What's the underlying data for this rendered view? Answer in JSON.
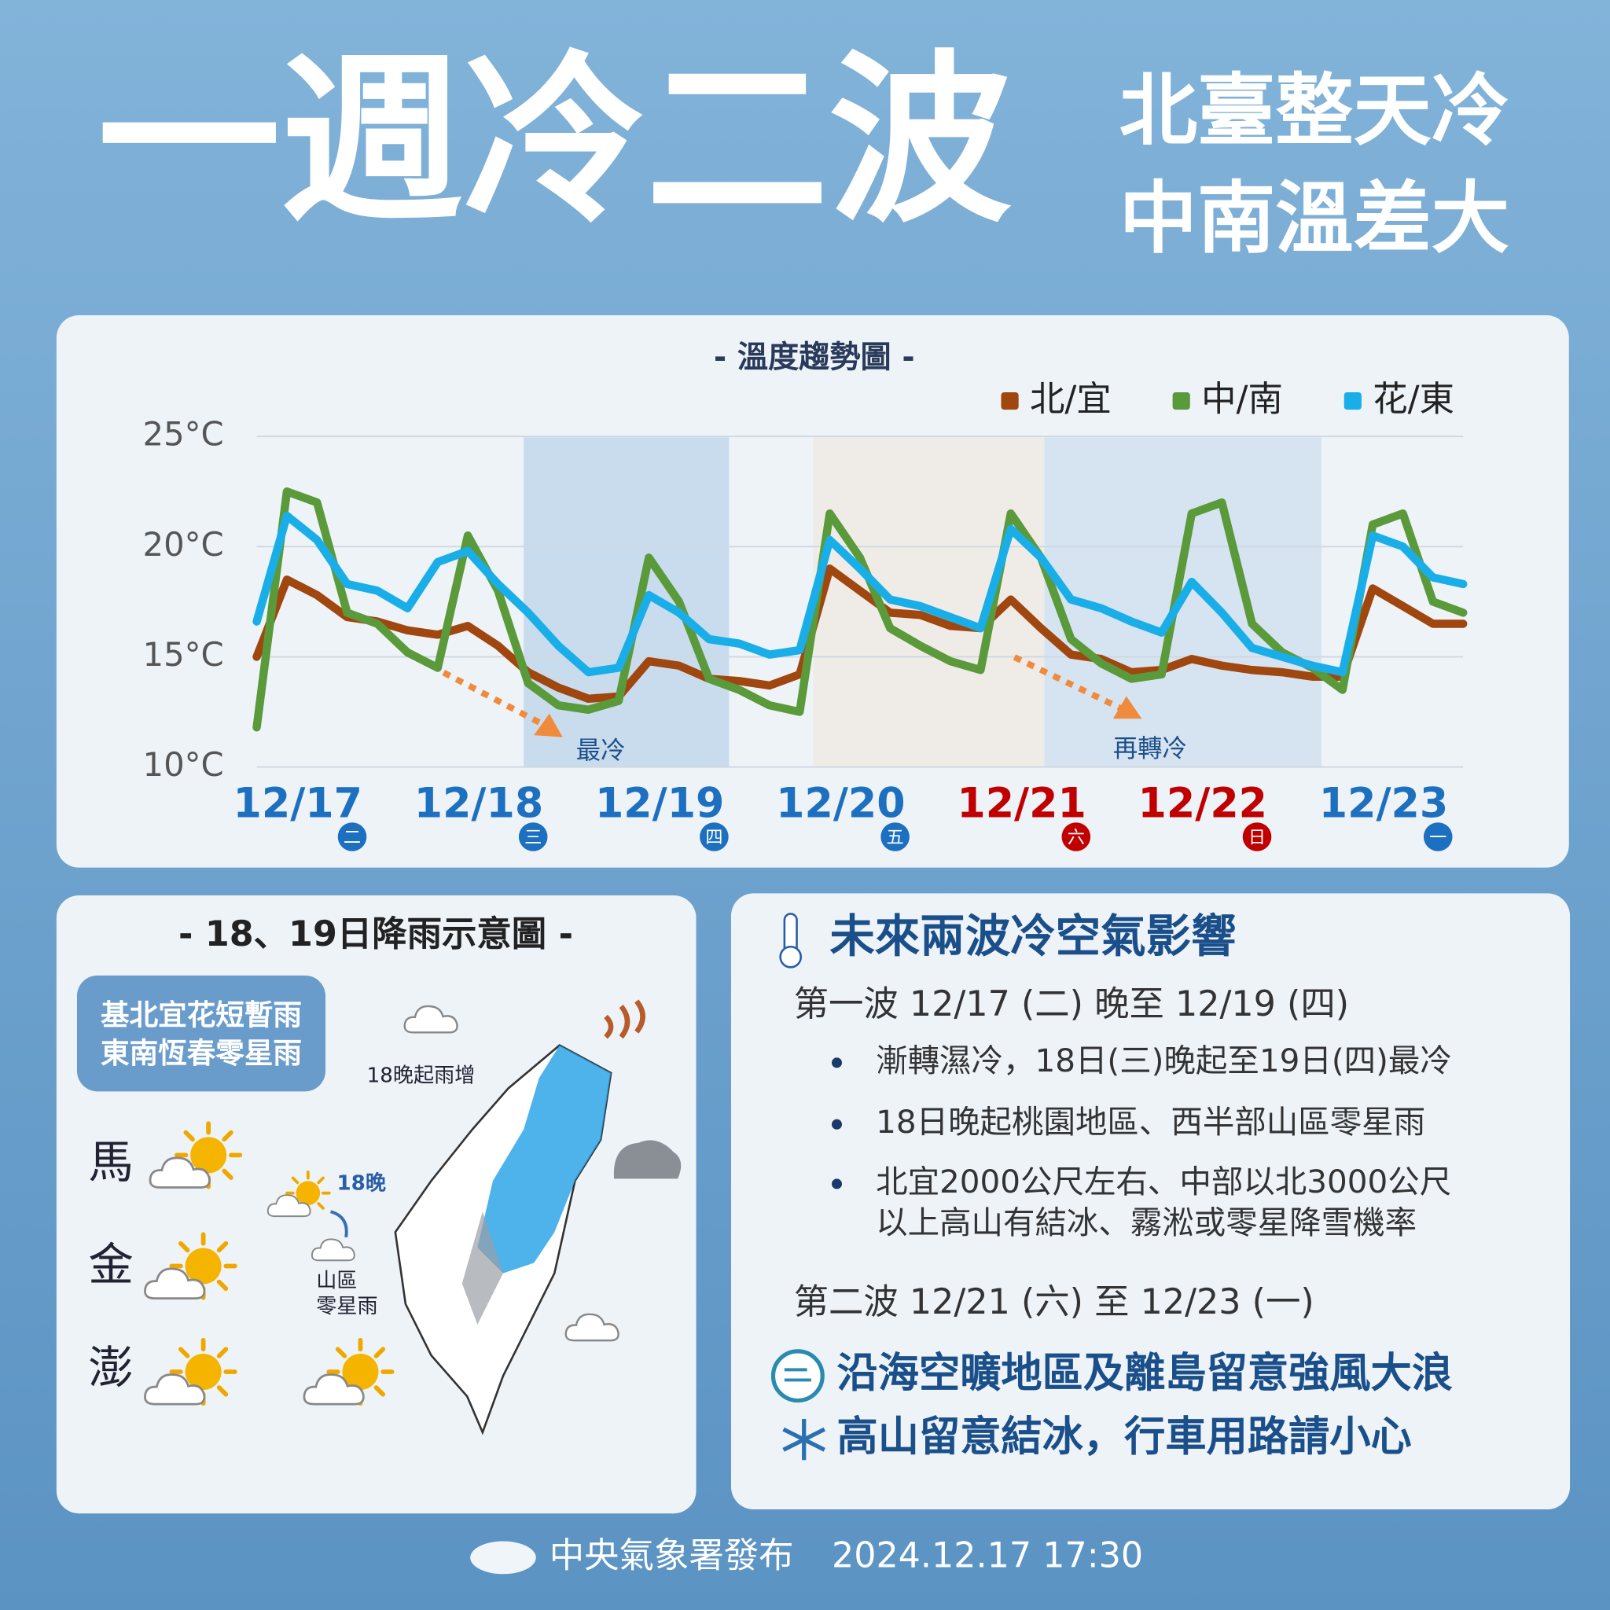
{
  "header": {
    "title": "一週冷二波",
    "subtitle_lines": [
      "北臺整天冷",
      "中南溫差大"
    ]
  },
  "chart_data": {
    "type": "line",
    "title": "- 溫度趨勢圖 -",
    "categories": [
      "12/17",
      "12/18",
      "12/19",
      "12/20",
      "12/21",
      "12/22",
      "12/23"
    ],
    "weekdays": [
      "二",
      "三",
      "四",
      "五",
      "六",
      "日",
      "一"
    ],
    "category_colors": [
      "#1d6fbf",
      "#1d6fbf",
      "#1d6fbf",
      "#1d6fbf",
      "#c00000",
      "#c00000",
      "#1d6fbf"
    ],
    "series": [
      {
        "name": "北/宜",
        "color": "#a0460f",
        "values": [
          [
            15,
            18.5,
            17.8,
            16.8,
            16.6,
            16.2
          ],
          [
            16,
            16.4,
            15.5,
            14.3,
            13.6,
            13.1
          ],
          [
            13.2,
            14.8,
            14.6,
            14,
            13.9,
            13.7
          ],
          [
            14.2,
            19,
            18,
            17,
            16.9,
            16.4
          ],
          [
            16.3,
            17.6,
            16.3,
            15.1,
            14.9,
            14.3
          ],
          [
            14.4,
            14.9,
            14.6,
            14.4,
            14.3,
            14.1
          ],
          [
            14.1,
            18.1,
            17.3,
            16.5,
            16.5
          ]
        ]
      },
      {
        "name": "中/南",
        "color": "#5a9a3a",
        "values": [
          [
            11.8,
            22.5,
            22,
            17,
            16.5,
            15.2
          ],
          [
            14.5,
            20.5,
            18,
            13.8,
            12.8,
            12.6
          ],
          [
            13,
            19.5,
            17.5,
            14,
            13.5,
            12.8
          ],
          [
            12.5,
            21.5,
            19.5,
            16.3,
            15.5,
            14.8
          ],
          [
            14.4,
            21.5,
            19.5,
            15.8,
            14.7,
            14
          ],
          [
            14.2,
            21.5,
            22,
            16.5,
            15.2,
            14.5
          ],
          [
            13.5,
            21,
            21.5,
            17.5,
            17
          ]
        ]
      },
      {
        "name": "花/東",
        "color": "#1aaee8",
        "values": [
          [
            16.6,
            21.4,
            20.3,
            18.3,
            18,
            17.2
          ],
          [
            19.3,
            19.8,
            18.3,
            17,
            15.5,
            14.3
          ],
          [
            14.5,
            17.8,
            17,
            15.8,
            15.6,
            15.1
          ],
          [
            15.3,
            20.3,
            19,
            17.6,
            17.3,
            16.8
          ],
          [
            16.3,
            20.8,
            19.5,
            17.6,
            17.2,
            16.6
          ],
          [
            16.1,
            18.4,
            17,
            15.4,
            15,
            14.6
          ],
          [
            14.3,
            20.5,
            20,
            18.6,
            18.3
          ]
        ]
      }
    ],
    "ylim": [
      10,
      25
    ],
    "yticks": [
      {
        "value": 10,
        "label": "10°C"
      },
      {
        "value": 15,
        "label": "15°C"
      },
      {
        "value": 20,
        "label": "20°C"
      },
      {
        "value": 25,
        "label": "25°C"
      }
    ],
    "grid": true,
    "legend": "top-right",
    "annotations": [
      "最冷",
      "再轉冷"
    ]
  },
  "rain_map": {
    "title": "- 18、19日降雨示意圖 -",
    "box_lines": [
      "基北宜花短暫雨",
      "東南恆春零星雨"
    ],
    "islands": [
      "馬",
      "金",
      "澎"
    ],
    "labels": [
      "18晚起雨增",
      "18晚",
      "山區",
      "零星雨"
    ]
  },
  "info": {
    "title": "未來兩波冷空氣影響",
    "wave1": "第一波  12/17 (二) 晚至 12/19 (四)",
    "bullets": [
      [
        "漸轉濕冷，18日(三)晚起至19日(四)最冷"
      ],
      [
        "18日晚起桃園地區、西半部山區零星雨"
      ],
      [
        "北宜2000公尺左右、中部以北3000公尺",
        "以上高山有結冰、霧淞或零星降雪機率"
      ]
    ],
    "wave2": "第二波  12/21 (六) 至 12/23 (一)",
    "alerts": [
      "沿海空曠地區及離島留意強風大浪",
      "高山留意結冰，行車用路請小心"
    ]
  },
  "footer": {
    "publisher": "中央氣象署發布",
    "time": "2024.12.17  17:30"
  }
}
